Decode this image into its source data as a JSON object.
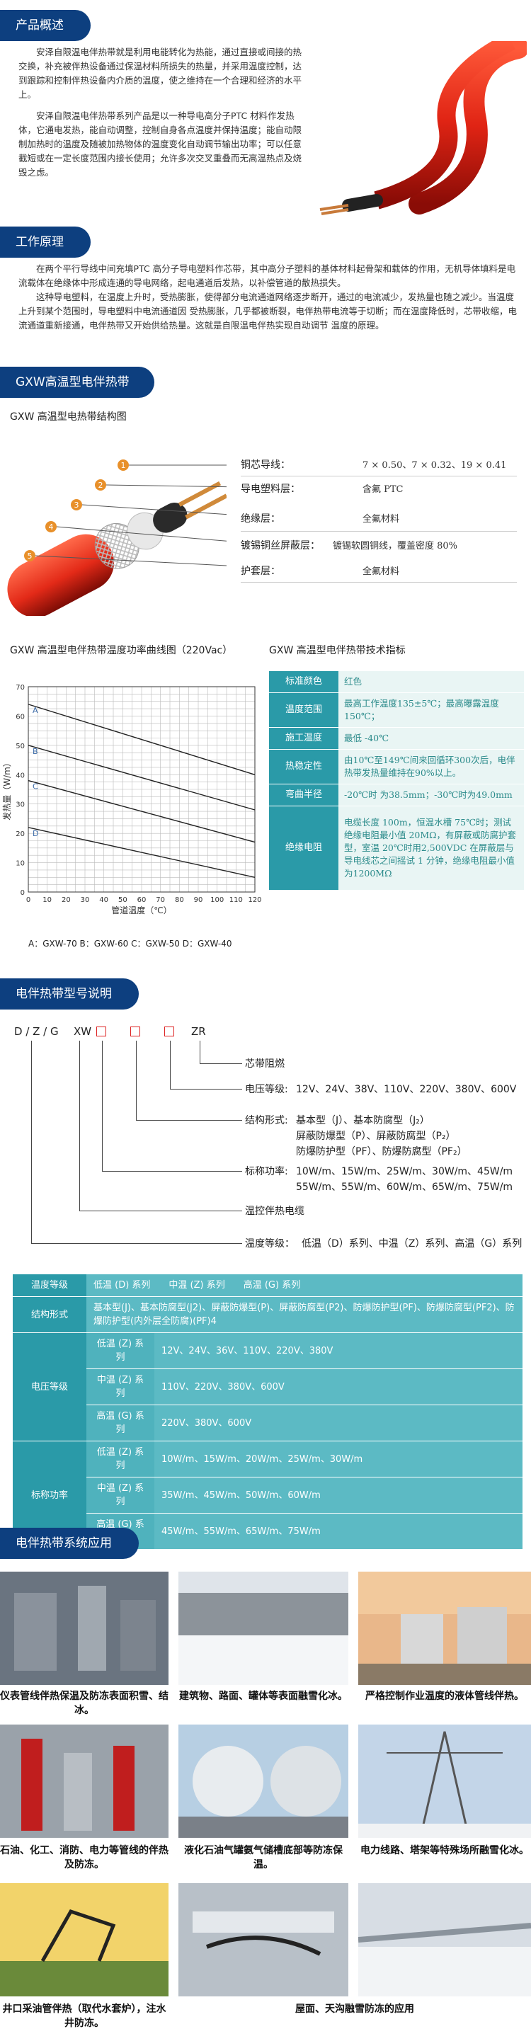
{
  "intro": {
    "title": "产品概述",
    "p1": "安泽自限温电伴热带就是利用电能转化为热能，通过直接或间接的热交换，补充被伴热设备通过保温材料所损失的热量，并采用温度控制，达到跟踪和控制伴热设备内介质的温度，使之维持在一个合理和经济的水平上。",
    "p2": "安泽自限温电伴热带系列产品是以一种导电高分子PTC 材料作发热体，它通电发热，能自动调整，控制自身各点温度并保持温度；能自动限制加热时的温度及随被加热物体的温度变化自动调节输出功率；可以任意截短或在一定长度范围内接长使用；允许多次交叉重叠而无高温热点及烧毁之虑。"
  },
  "principle": {
    "title": "工作原理",
    "p1": "在两个平行导线中间充填PTC 高分子导电塑料作芯带，其中高分子塑料的基体材料起骨架和载体的作用，无机导体填料是电流载体在绝缘体中形成连通的导电网络，起电通道后发热，以补偿管道的散热损失。",
    "p2": "这种导电塑料，在温度上升时，受热膨胀，使得部分电流通道网络逐步断开，通过的电流减少，发热量也随之减少。当温度上升到某个范围时，导电塑料中电流通道因 受热膨胀，几乎都被断裂，电伴热带电流等于切断；而在温度降低时，芯带收缩，电流通道重新接通，电伴热带又开始供给热量。这就是自限温电伴热实现自动调节 温度的原理。"
  },
  "gxw": {
    "title": "GXW高温型电伴热带",
    "subtitle": "GXW 高温型电热带结构图",
    "layers": [
      {
        "num": "1",
        "name": "铜芯导线：",
        "spec": "7 × 0.50、7 × 0.32、19 × 0.41"
      },
      {
        "num": "2",
        "name": "导电塑料层：",
        "spec": "含氟 PTC"
      },
      {
        "num": "3",
        "name": "绝缘层：",
        "spec": "全氟材料"
      },
      {
        "num": "4",
        "name": "镀锡铜丝屏蔽层：",
        "spec": "镀锡软圆铜线，覆盖密度 80%"
      },
      {
        "num": "5",
        "name": "护套层：",
        "spec": "全氟材料"
      }
    ]
  },
  "chart_title": "GXW 高温型电伴热带温度功率曲线图（220Vac）",
  "chart_data": {
    "type": "line",
    "title": "GXW 高温型电伴热带温度功率曲线图（220Vac）",
    "xlabel": "管道温度（℃）",
    "ylabel": "发热量（W/m）",
    "xlim": [
      0,
      120
    ],
    "ylim": [
      0,
      70
    ],
    "xticks": [
      "0",
      "10",
      "20",
      "30",
      "40",
      "50",
      "60",
      "70",
      "80",
      "90",
      "100",
      "110",
      "120"
    ],
    "yticks": [
      "0",
      "10",
      "20",
      "30",
      "40",
      "50",
      "60",
      "70"
    ],
    "grid": true,
    "series": [
      {
        "name": "A",
        "x": [
          0,
          120
        ],
        "y": [
          64,
          40
        ]
      },
      {
        "name": "B",
        "x": [
          0,
          120
        ],
        "y": [
          50,
          28
        ]
      },
      {
        "name": "C",
        "x": [
          0,
          120
        ],
        "y": [
          38,
          17
        ]
      },
      {
        "name": "D",
        "x": [
          0,
          120
        ],
        "y": [
          22,
          5
        ]
      }
    ],
    "legend": "A：GXW-70  B：GXW-60  C：GXW-50  D：GXW-40"
  },
  "tech": {
    "title": "GXW 高温型电伴热带技术指标",
    "rows": [
      {
        "k": "标准颜色",
        "v": "红色"
      },
      {
        "k": "温度范围",
        "v": "最高工作温度135±5℃；最高曝露温度150℃；"
      },
      {
        "k": "施工温度",
        "v": "最低 -40℃"
      },
      {
        "k": "热稳定性",
        "v": "由10℃至149℃间来回循环300次后，电伴热带发热量维持在90%以上。"
      },
      {
        "k": "弯曲半径",
        "v": "-20℃时 为38.5mm；-30℃时为49.0mm"
      },
      {
        "k": "绝缘电阻",
        "v": "电缆长度 100m，恒温水槽 75℃时；测试绝缘电阻最小值 20MΩ，有屏蔽或防腐护套型，室温 20℃时用2,500VDC 在屏蔽层与导电线芯之间摇试 1 分钟，绝缘电阻最小值为1200MΩ"
      }
    ]
  },
  "model_desc": {
    "title": "电伴热带型号说明",
    "code_parts": [
      "D / Z / G",
      "XW",
      "ZR"
    ],
    "items": [
      {
        "label": "芯带阻燃",
        "value": ""
      },
      {
        "label": "电压等级:",
        "value": "12V、24V、38V、110V、220V、380V、600V"
      },
      {
        "label": "结构形式:",
        "value": "基本型（J）、基本防腐型（J₂）"
      },
      {
        "label": "",
        "value": "屏蔽防爆型（P）、屏蔽防腐型（P₂）"
      },
      {
        "label": "",
        "value": "防爆防护型（PF）、防爆防腐型（PF₂）"
      },
      {
        "label": "标称功率:",
        "value": "10W/m、15W/m、25W/m、30W/m、45W/m"
      },
      {
        "label": "",
        "value": "55W/m、55W/m、60W/m、65W/m、75W/m"
      },
      {
        "label": "温控伴热电缆",
        "value": ""
      },
      {
        "label": "温度等级：",
        "value": "低温（D）系列、中温（Z）系列、高温（G）系列"
      }
    ]
  },
  "model_table": {
    "rows": [
      {
        "k": "温度等级",
        "s": "",
        "v": "低温 (D) 系列　　中温 (Z) 系列　　高温 (G) 系列"
      },
      {
        "k": "结构形式",
        "s": "",
        "v": "基本型(J)、基本防腐型(J2)、屏蔽防爆型(P)、屏蔽防腐型(P2)、防爆防护型(PF)、防爆防腐型(PF2)、防爆防护型(内外层全防腐)(PF)4"
      },
      {
        "k": "电压等级",
        "s": "低温 (Z) 系列",
        "v": "12V、24V、36V、110V、220V、380V"
      },
      {
        "k": "",
        "s": "中温 (Z) 系列",
        "v": "110V、220V、380V、600V"
      },
      {
        "k": "",
        "s": "高温 (G) 系列",
        "v": "220V、380V、600V"
      },
      {
        "k": "标称功率",
        "s": "低温 (Z) 系列",
        "v": "10W/m、15W/m、20W/m、25W/m、30W/m"
      },
      {
        "k": "",
        "s": "中温 (Z) 系列",
        "v": "35W/m、45W/m、50W/m、60W/m"
      },
      {
        "k": "",
        "s": "高温 (G) 系列",
        "v": "45W/m、55W/m、65W/m、75W/m"
      }
    ]
  },
  "apps": {
    "title": "电伴热带系统应用",
    "items": [
      "仪表管线伴热保温及防冻表面积雪、结冰。",
      "建筑物、路面、罐体等表面融雪化冰。",
      "严格控制作业温度的液体管线伴热。",
      "石油、化工、消防、电力等管线的伴热及防冻。",
      "液化石油气罐氨气储槽底部等防冻保温。",
      "电力线路、塔架等特殊场所融雪化冰。",
      "井口采油管伴热（取代水套炉），注水井防冻。",
      "屋面、天沟融雪防冻的应用"
    ]
  }
}
